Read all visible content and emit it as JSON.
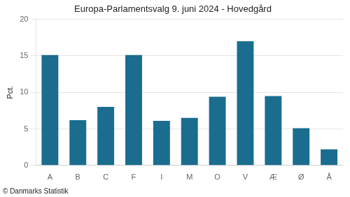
{
  "chart_data": {
    "type": "bar",
    "title": "Europa-Parlamentsvalg 9. juni 2024 - Hovedgård",
    "categories": [
      "A",
      "B",
      "C",
      "F",
      "I",
      "M",
      "O",
      "V",
      "Æ",
      "Ø",
      "Å"
    ],
    "values": [
      15.1,
      6.2,
      8.0,
      15.1,
      6.1,
      6.5,
      9.4,
      17.0,
      9.5,
      5.1,
      2.2
    ],
    "color": "#1a6d8e",
    "ylabel": "Pct.",
    "footer": "© Danmarks Statistik",
    "ylim": [
      0,
      20
    ],
    "yticks": [
      0,
      5,
      10,
      15,
      20
    ],
    "grid": true
  }
}
